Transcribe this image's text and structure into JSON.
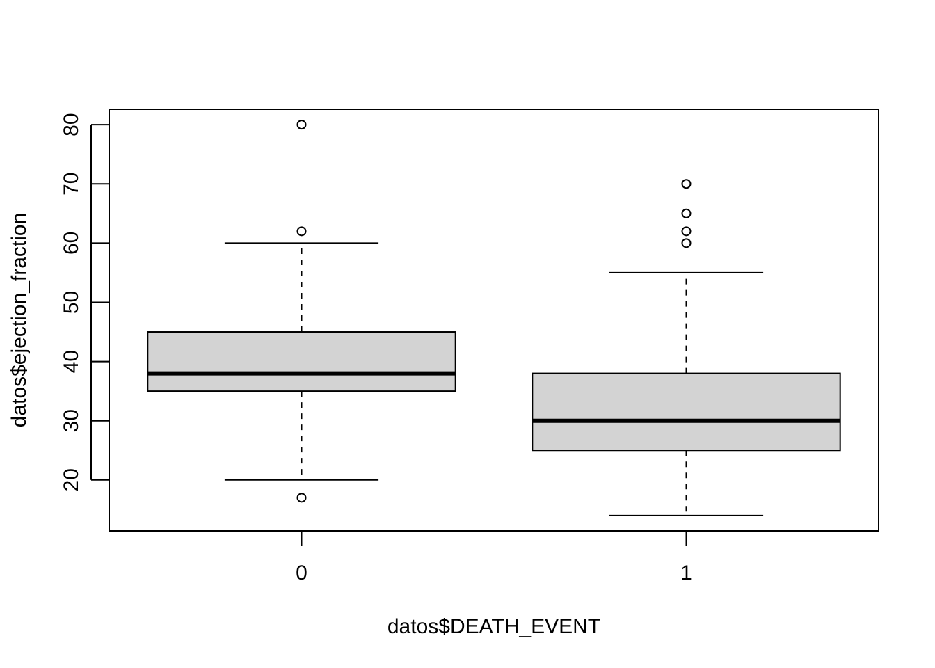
{
  "chart_data": {
    "type": "box",
    "title": "",
    "xlabel": "datos$DEATH_EVENT",
    "ylabel": "datos$ejection_fraction",
    "ylim": [
      11.4,
      82.6
    ],
    "y_ticks": [
      20,
      30,
      40,
      50,
      60,
      70,
      80
    ],
    "y_tick_labels": [
      "20",
      "30",
      "40",
      "50",
      "60",
      "70",
      "80"
    ],
    "categories": [
      "0",
      "1"
    ],
    "boxes": [
      {
        "category": "0",
        "whisker_low": 20,
        "q1": 35,
        "median": 38,
        "q3": 45,
        "whisker_high": 60,
        "outliers": [
          80,
          62,
          17
        ]
      },
      {
        "category": "1",
        "whisker_low": 14,
        "q1": 25,
        "median": 30,
        "q3": 38,
        "whisker_high": 55,
        "outliers": [
          70,
          65,
          62,
          60
        ]
      }
    ],
    "box_fill": "#d3d3d3",
    "grid": false
  }
}
